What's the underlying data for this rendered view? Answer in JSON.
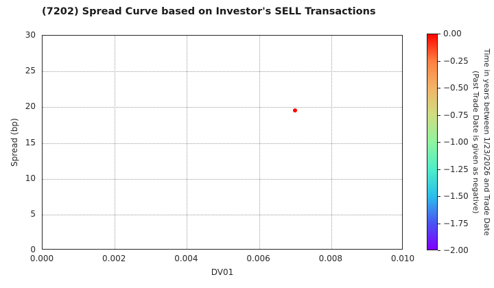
{
  "chart_data": {
    "type": "scatter",
    "title": "(7202)   Spread Curve based on Investor's SELL Transactions",
    "xlabel": "DV01",
    "ylabel": "Spread (bp)",
    "xlim": [
      0.0,
      0.01
    ],
    "ylim": [
      0,
      30
    ],
    "xticks": [
      0.0,
      0.002,
      0.004,
      0.006,
      0.008,
      0.01
    ],
    "xtick_labels": [
      "0.000",
      "0.002",
      "0.004",
      "0.006",
      "0.008",
      "0.010"
    ],
    "yticks": [
      0,
      5,
      10,
      15,
      20,
      25,
      30
    ],
    "ytick_labels": [
      "0",
      "5",
      "10",
      "15",
      "20",
      "25",
      "30"
    ],
    "grid": true,
    "legend_position": "none",
    "points": [
      {
        "x": 0.007,
        "y": 19.6,
        "time_value": 0.0,
        "color": "#ff0000"
      }
    ],
    "colorbar": {
      "label": "Time in years between 1/23/2026 and Trade Date\n(Past Trade Date is given as negative)",
      "max": 0.0,
      "min": -2.0,
      "tick_labels": [
        "0.00",
        "−0.25",
        "−0.50",
        "−0.75",
        "−1.00",
        "−1.25",
        "−1.50",
        "−1.75",
        "−2.00"
      ],
      "colormap": "rainbow",
      "gradient_stops": [
        {
          "pos": 0,
          "color": "#ff0600"
        },
        {
          "pos": 12.5,
          "color": "#ff8040"
        },
        {
          "pos": 25,
          "color": "#f2b468"
        },
        {
          "pos": 37.5,
          "color": "#cfdd81"
        },
        {
          "pos": 50,
          "color": "#90f49e"
        },
        {
          "pos": 62.5,
          "color": "#4feec9"
        },
        {
          "pos": 75,
          "color": "#2ac0ea"
        },
        {
          "pos": 87.5,
          "color": "#4a55f2"
        },
        {
          "pos": 100,
          "color": "#7f00ff"
        }
      ]
    },
    "colors": {
      "frame": "#262626",
      "grid": "#9a9a9a",
      "text": "#262626",
      "point": "#ff0000"
    }
  }
}
